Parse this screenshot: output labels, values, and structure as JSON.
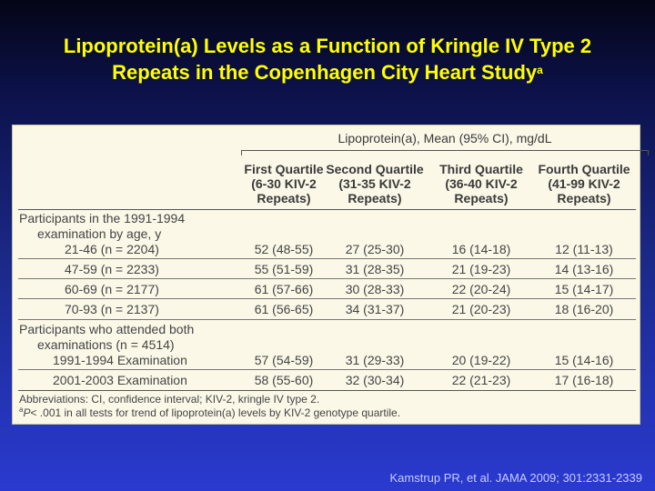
{
  "title": {
    "line1": "Lipoprotein(a) Levels as a Function of Kringle IV Type 2",
    "line2": "Repeats in the Copenhagen City Heart Study",
    "superscript": "a"
  },
  "table": {
    "header": "Lipoprotein(a), Mean (95% CI), mg/dL",
    "columns": [
      {
        "l1": "First Quartile",
        "l2": "(6-30 KIV-2",
        "l3": "Repeats)"
      },
      {
        "l1": "Second Quartile",
        "l2": "(31-35 KIV-2",
        "l3": "Repeats)"
      },
      {
        "l1": "Third Quartile",
        "l2": "(36-40 KIV-2",
        "l3": "Repeats)"
      },
      {
        "l1": "Fourth Quartile",
        "l2": "(41-99 KIV-2",
        "l3": "Repeats)"
      }
    ],
    "group1": {
      "l1": "Participants in the 1991-1994",
      "l2": "examination by age, y",
      "rows": [
        {
          "label": "21-46 (n = 2204)",
          "v": [
            "52 (48-55)",
            "27 (25-30)",
            "16 (14-18)",
            "12 (11-13)"
          ]
        },
        {
          "label": "47-59 (n = 2233)",
          "v": [
            "55 (51-59)",
            "31 (28-35)",
            "21 (19-23)",
            "14 (13-16)"
          ]
        },
        {
          "label": "60-69 (n = 2177)",
          "v": [
            "61 (57-66)",
            "30 (28-33)",
            "22 (20-24)",
            "15 (14-17)"
          ]
        },
        {
          "label": "70-93 (n = 2137)",
          "v": [
            "61 (56-65)",
            "34 (31-37)",
            "21 (20-23)",
            "18 (16-20)"
          ]
        }
      ]
    },
    "group2": {
      "l1": "Participants who attended both",
      "l2": "examinations (n = 4514)",
      "rows": [
        {
          "label": "1991-1994 Examination",
          "v": [
            "57 (54-59)",
            "31 (29-33)",
            "20 (19-22)",
            "15 (14-16)"
          ]
        },
        {
          "label": "2001-2003 Examination",
          "v": [
            "58 (55-60)",
            "32 (30-34)",
            "22 (21-23)",
            "17 (16-18)"
          ]
        }
      ]
    },
    "footnote1": "Abbreviations: CI, confidence interval; KIV-2, kringle IV type 2.",
    "footnote2_sup": "a",
    "footnote2_p": "P",
    "footnote2_rest": "< .001 in all tests for trend of lipoprotein(a) levels by KIV-2 genotype quartile."
  },
  "citation": "Kamstrup PR, et al. JAMA 2009; 301:2331-2339"
}
